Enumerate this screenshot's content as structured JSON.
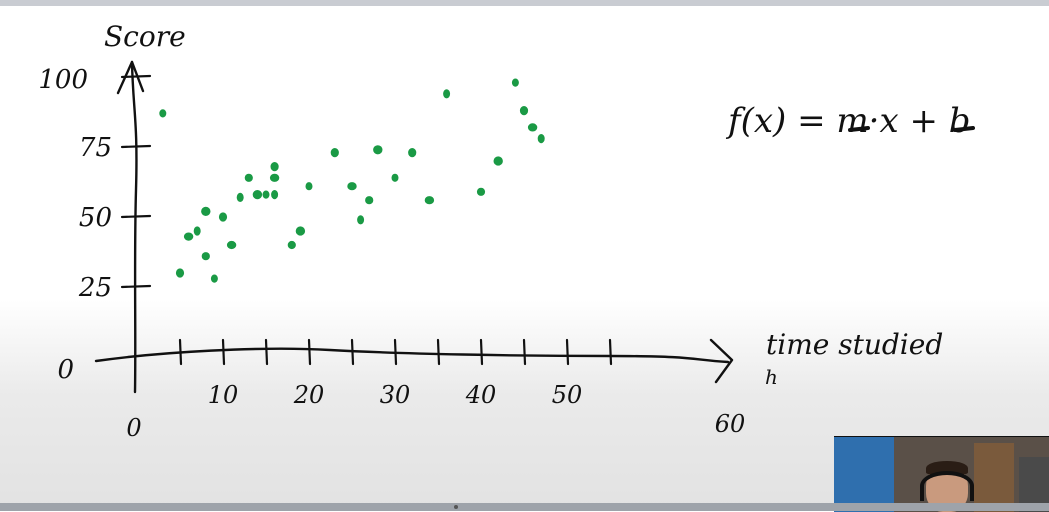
{
  "chart_data": {
    "type": "scatter",
    "title": "",
    "xlabel": "time studied",
    "xunit": "h",
    "ylabel": "Score",
    "x_ticks": [
      "0",
      "10",
      "20",
      "30",
      "40",
      "50",
      "60"
    ],
    "y_ticks": [
      "0",
      "25",
      "50",
      "75",
      "100"
    ],
    "xlim": [
      0,
      60
    ],
    "ylim": [
      0,
      100
    ],
    "grid": false,
    "series": [
      {
        "color": "#1a9a45",
        "points": [
          [
            3,
            87
          ],
          [
            5,
            30
          ],
          [
            6,
            43
          ],
          [
            7,
            45
          ],
          [
            8,
            36
          ],
          [
            8,
            52
          ],
          [
            9,
            28
          ],
          [
            10,
            50
          ],
          [
            11,
            40
          ],
          [
            12,
            57
          ],
          [
            13,
            64
          ],
          [
            14,
            58
          ],
          [
            15,
            58
          ],
          [
            16,
            68
          ],
          [
            16,
            64
          ],
          [
            16,
            58
          ],
          [
            18,
            40
          ],
          [
            19,
            45
          ],
          [
            20,
            61
          ],
          [
            23,
            73
          ],
          [
            25,
            61
          ],
          [
            26,
            49
          ],
          [
            27,
            56
          ],
          [
            28,
            74
          ],
          [
            30,
            64
          ],
          [
            32,
            73
          ],
          [
            34,
            56
          ],
          [
            36,
            94
          ],
          [
            40,
            59
          ],
          [
            42,
            70
          ],
          [
            44,
            98
          ],
          [
            45,
            88
          ],
          [
            46,
            82
          ],
          [
            47,
            78
          ]
        ]
      }
    ],
    "annotation": {
      "formula_prefix": "f(x) = ",
      "slope": "m",
      "middle": "·x + ",
      "intercept": "b"
    }
  },
  "colors": {
    "ink": "#111111",
    "marker": "#1a9a45"
  }
}
